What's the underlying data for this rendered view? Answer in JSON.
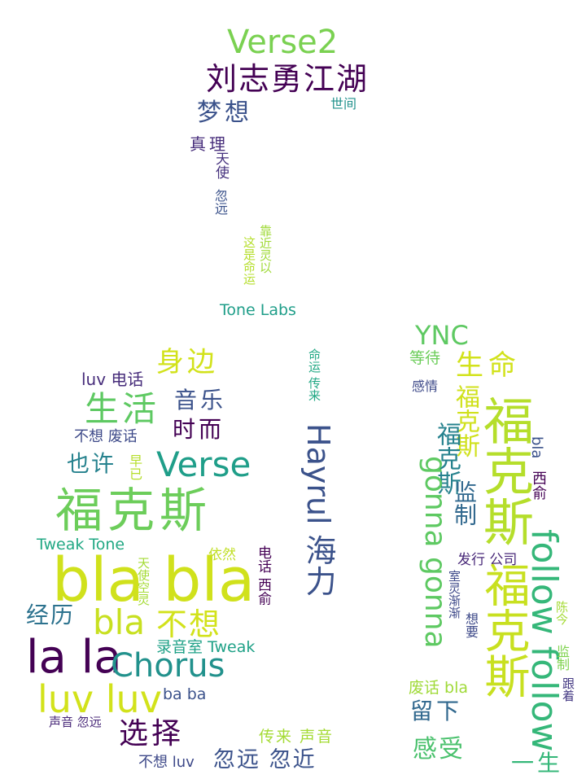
{
  "palette": {
    "dark_purple": "#440154",
    "indigo": "#3b528b",
    "teal": "#21918c",
    "green": "#5ec962",
    "lime": "#b5de2b",
    "yellow": "#d2e21b",
    "navy": "#31688e"
  },
  "words": [
    {
      "text": "Verse2",
      "color": "#7ad151"
    },
    {
      "text": "刘志勇江湖",
      "color": "#440154"
    },
    {
      "text": "梦想",
      "color": "#3b528b"
    },
    {
      "text": "世间",
      "color": "#21918c"
    },
    {
      "text": "真理",
      "color": "#472d7b"
    },
    {
      "text": "天使",
      "color": "#46327e"
    },
    {
      "text": "忽远",
      "color": "#3b528b"
    },
    {
      "text": "这是命运",
      "color": "#b5de2b"
    },
    {
      "text": "靠近灵以",
      "color": "#a0da39"
    },
    {
      "text": "Tone Labs",
      "color": "#1f9e89"
    },
    {
      "text": "YNC",
      "color": "#5ec962"
    },
    {
      "text": "等待",
      "color": "#6ccd5a"
    },
    {
      "text": "生命",
      "color": "#d2e21b"
    },
    {
      "text": "感情",
      "color": "#3e4a89"
    },
    {
      "text": "福克斯",
      "color": "#d0e11c"
    },
    {
      "text": "福克斯",
      "color": "#26828e"
    },
    {
      "text": "福克斯",
      "color": "#b5de2b"
    },
    {
      "text": "监制",
      "color": "#31688e"
    },
    {
      "text": "gonna gonna",
      "color": "#5ec962"
    },
    {
      "text": "bla",
      "color": "#3b528b"
    },
    {
      "text": "西俞",
      "color": "#440154"
    },
    {
      "text": "follow follow",
      "color": "#35b779"
    },
    {
      "text": "发行 公司",
      "color": "#482878"
    },
    {
      "text": "室灵渐渐",
      "color": "#3e4989"
    },
    {
      "text": "想要",
      "color": "#3e4a89"
    },
    {
      "text": "陈今",
      "color": "#a5db36"
    },
    {
      "text": "福克斯",
      "color": "#c8e020"
    },
    {
      "text": "监制",
      "color": "#7fd34e"
    },
    {
      "text": "跟着",
      "color": "#443983"
    },
    {
      "text": "废话 bla",
      "color": "#a0da39"
    },
    {
      "text": "留下",
      "color": "#31688e"
    },
    {
      "text": "感受",
      "color": "#4ac16d"
    },
    {
      "text": "一生",
      "color": "#35b779"
    },
    {
      "text": "身边",
      "color": "#d2e21b"
    },
    {
      "text": "luv 电话",
      "color": "#472d7b"
    },
    {
      "text": "生活",
      "color": "#5ec962"
    },
    {
      "text": "音乐",
      "color": "#3b528b"
    },
    {
      "text": "时而",
      "color": "#440154"
    },
    {
      "text": "不想 废话",
      "color": "#3e4a89"
    },
    {
      "text": "也许",
      "color": "#26828e"
    },
    {
      "text": "早已",
      "color": "#b5de2b"
    },
    {
      "text": "Verse",
      "color": "#1f9e89"
    },
    {
      "text": "福克斯",
      "color": "#6ccd5a"
    },
    {
      "text": "Tweak Tone",
      "color": "#22a884"
    },
    {
      "text": "bla bla",
      "color": "#d0e11c"
    },
    {
      "text": "依然",
      "color": "#c0df25"
    },
    {
      "text": "天使空灵",
      "color": "#a5db36"
    },
    {
      "text": "经历",
      "color": "#2c728e"
    },
    {
      "text": "bla",
      "color": "#c8e020"
    },
    {
      "text": "不想",
      "color": "#d2e21b"
    },
    {
      "text": "la la",
      "color": "#440154"
    },
    {
      "text": "Chorus",
      "color": "#21918c"
    },
    {
      "text": "录音室 Tweak",
      "color": "#1fa187"
    },
    {
      "text": "luv luv",
      "color": "#d2e21b"
    },
    {
      "text": "ba ba",
      "color": "#3b528b"
    },
    {
      "text": "声音 忽远",
      "color": "#482878"
    },
    {
      "text": "选择",
      "color": "#440154"
    },
    {
      "text": "不想 luv",
      "color": "#3e4989"
    },
    {
      "text": "忽远 忽近",
      "color": "#3b528b"
    },
    {
      "text": "传来 声音",
      "color": "#a5db36"
    },
    {
      "text": "Hayrul 海力",
      "color": "#3b528b"
    },
    {
      "text": "命运 传来",
      "color": "#22a884"
    },
    {
      "text": "电话 西俞",
      "color": "#440154"
    }
  ]
}
